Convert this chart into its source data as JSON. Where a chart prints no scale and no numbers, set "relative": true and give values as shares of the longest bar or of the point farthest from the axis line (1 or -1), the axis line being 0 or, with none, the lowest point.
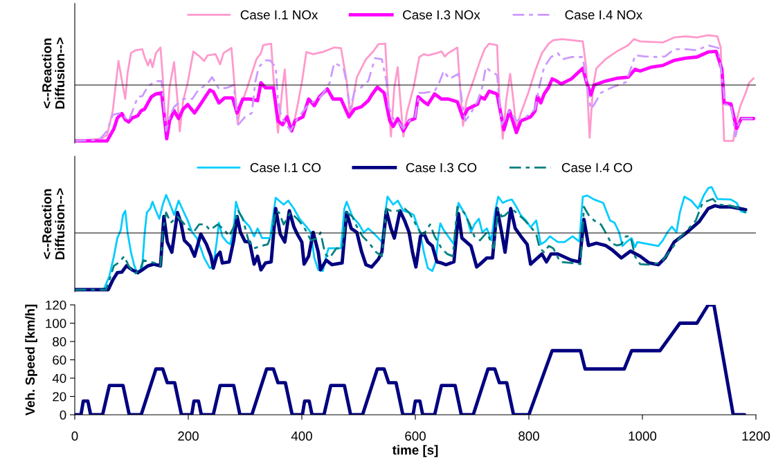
{
  "chart_data": [
    {
      "type": "line",
      "relative": true,
      "ylabel": "<--Reaction\nDiffusion-->",
      "xlim": [
        0,
        1200
      ],
      "legend": "top",
      "series": [
        {
          "name": "Case I.1 NOx",
          "color": "#ff99cc",
          "line_style": "solid",
          "x": [
            0,
            47,
            57,
            67,
            77,
            82,
            89,
            93,
            99,
            107,
            119,
            123,
            129,
            133,
            137,
            143,
            151,
            155,
            161,
            167,
            175,
            181,
            185,
            191,
            199,
            209,
            221,
            228,
            234,
            248,
            256,
            262,
            276,
            280,
            287,
            292,
            304,
            312,
            320,
            328,
            332,
            346,
            350,
            358,
            366,
            370,
            376,
            384,
            392,
            400,
            408,
            420,
            437,
            457,
            469,
            479,
            485,
            491,
            497,
            513,
            525,
            535,
            547,
            553,
            557,
            563,
            569,
            573,
            579,
            585,
            597,
            607,
            615,
            622,
            638,
            646,
            652,
            658,
            674,
            680,
            684,
            690,
            702,
            714,
            722,
            730,
            744,
            748,
            754,
            760,
            767,
            772,
            778,
            786,
            799,
            811,
            823,
            835,
            843,
            859,
            895,
            901,
            907,
            913,
            919,
            935,
            955,
            975,
            985,
            996,
            1036,
            1056,
            1076,
            1096,
            1116,
            1132,
            1138,
            1144,
            1160,
            1164,
            1172,
            1182,
            1188,
            1196
          ],
          "values": [
            -1,
            -0.96,
            -0.89,
            -0.46,
            0.43,
            0.14,
            -0.25,
            0.21,
            0.57,
            0.62,
            0.64,
            0.5,
            0.35,
            0.46,
            0.32,
            0.57,
            0.67,
            0.14,
            -0.92,
            -0.04,
            0.41,
            -0.28,
            -0.83,
            -0.28,
            0.04,
            0.6,
            0.5,
            0.43,
            0.53,
            0.55,
            0.37,
            0.57,
            0.66,
            0.18,
            -0.69,
            -0.39,
            -0.04,
            0.21,
            0.46,
            0.57,
            0.71,
            0.74,
            0.14,
            -0.85,
            -0.04,
            0.28,
            -0.64,
            -0.78,
            -0.39,
            0.04,
            0.59,
            0.55,
            0.59,
            0.67,
            0.66,
            0.07,
            -0.57,
            -0.21,
            0.14,
            0.46,
            0.59,
            0.73,
            0.74,
            -0.39,
            -0.92,
            -0.04,
            0.32,
            -0.21,
            -0.92,
            -0.5,
            -0.04,
            0.5,
            0.55,
            0.53,
            0.57,
            0.6,
            0.51,
            0.57,
            0.67,
            -0.21,
            -0.73,
            -0.28,
            0.07,
            0.43,
            0.64,
            0.74,
            0.71,
            -0.21,
            -0.96,
            -0.28,
            0.2,
            -0.21,
            -0.78,
            -0.5,
            -0.14,
            0.25,
            0.57,
            0.74,
            0.8,
            0.82,
            0.78,
            0.32,
            -0.94,
            -0.04,
            0.3,
            0.46,
            0.6,
            0.71,
            0.82,
            0.78,
            0.76,
            0.85,
            0.87,
            0.85,
            0.89,
            0.87,
            0.67,
            -1,
            -1,
            -0.71,
            -0.39,
            -0.14,
            0.04,
            0.12
          ]
        },
        {
          "name": "Case I.3 NOx",
          "color": "#ff00ff",
          "line_style": "solid",
          "x": [
            0,
            57,
            69,
            75,
            83,
            89,
            95,
            101,
            111,
            117,
            123,
            129,
            135,
            143,
            153,
            157,
            162,
            167,
            175,
            183,
            191,
            199,
            211,
            221,
            232,
            238,
            244,
            254,
            264,
            278,
            286,
            296,
            308,
            322,
            328,
            336,
            350,
            358,
            366,
            374,
            382,
            388,
            402,
            412,
            422,
            431,
            445,
            455,
            469,
            483,
            493,
            505,
            517,
            523,
            533,
            545,
            555,
            561,
            569,
            579,
            589,
            599,
            605,
            615,
            622,
            634,
            646,
            658,
            674,
            684,
            692,
            710,
            714,
            722,
            730,
            744,
            756,
            766,
            778,
            786,
            803,
            811,
            815,
            821,
            827,
            835,
            841,
            849,
            857,
            875,
            895,
            901,
            909,
            915,
            935,
            955,
            975,
            987,
            996,
            1016,
            1036,
            1056,
            1076,
            1096,
            1116,
            1130,
            1140,
            1144,
            1156,
            1166,
            1174,
            1196
          ],
          "values": [
            -1,
            -1,
            -0.78,
            -0.59,
            -0.51,
            -0.62,
            -0.66,
            -0.59,
            -0.55,
            -0.46,
            -0.43,
            -0.32,
            -0.21,
            -0.16,
            -0.14,
            -0.5,
            -0.96,
            -0.64,
            -0.46,
            -0.6,
            -0.43,
            -0.35,
            -0.5,
            -0.35,
            -0.18,
            -0.09,
            -0.12,
            -0.32,
            -0.23,
            -0.23,
            -0.5,
            -0.25,
            -0.25,
            -0.28,
            0.04,
            -0.05,
            -0.05,
            -0.64,
            -0.71,
            -0.57,
            -0.82,
            -0.64,
            -0.57,
            -0.25,
            -0.37,
            -0.21,
            -0.07,
            -0.25,
            -0.25,
            -0.57,
            -0.43,
            -0.39,
            -0.28,
            -0.18,
            -0.04,
            -0.14,
            -0.64,
            -0.74,
            -0.6,
            -0.82,
            -0.64,
            -0.6,
            -0.21,
            -0.3,
            -0.35,
            -0.16,
            -0.25,
            -0.25,
            -0.3,
            -0.59,
            -0.43,
            -0.34,
            -0.21,
            -0.25,
            -0.11,
            -0.16,
            -0.8,
            -0.46,
            -0.85,
            -0.64,
            -0.57,
            -0.46,
            -0.2,
            -0.32,
            -0.16,
            -0.04,
            0.11,
            0.07,
            0.02,
            0.11,
            0.3,
            0.07,
            -0.18,
            0,
            0.07,
            0.12,
            0.14,
            0.28,
            0.25,
            0.32,
            0.35,
            0.44,
            0.48,
            0.5,
            0.59,
            0.6,
            0.28,
            -0.32,
            -0.34,
            -0.78,
            -0.6,
            -0.6
          ]
        },
        {
          "name": "Case I.4 NOx",
          "color": "#cc99ff",
          "line_style": "dashed",
          "x": [
            0,
            43,
            57,
            67,
            81,
            95,
            103,
            111,
            119,
            129,
            143,
            153,
            157,
            161,
            167,
            175,
            191,
            207,
            219,
            232,
            242,
            254,
            268,
            280,
            288,
            300,
            312,
            318,
            324,
            336,
            344,
            354,
            358,
            364,
            380,
            392,
            412,
            429,
            437,
            449,
            457,
            473,
            479,
            485,
            493,
            505,
            517,
            529,
            541,
            549,
            553,
            561,
            569,
            579,
            589,
            599,
            607,
            615,
            634,
            642,
            650,
            660,
            676,
            682,
            688,
            698,
            710,
            718,
            724,
            732,
            744,
            752,
            766,
            778,
            795,
            811,
            819,
            827,
            839,
            851,
            859,
            875,
            895,
            905,
            909,
            915,
            927,
            947,
            971,
            983,
            987,
            1004,
            1026,
            1040,
            1056,
            1076,
            1096,
            1116,
            1134,
            1140,
            1146,
            1156,
            1164,
            1172,
            1196
          ],
          "values": [
            -1,
            -0.98,
            -0.82,
            -0.53,
            -0.5,
            -0.64,
            -0.43,
            -0.21,
            -0.2,
            -0.02,
            0.07,
            0.07,
            -0.39,
            -0.82,
            -0.57,
            -0.39,
            -0.25,
            -0.25,
            -0.07,
            0,
            0.14,
            -0.07,
            -0.05,
            0,
            -0.71,
            -0.57,
            -0.5,
            0.05,
            0.32,
            0.44,
            0.44,
            0.32,
            -0.28,
            -0.57,
            -0.82,
            -0.6,
            -0.35,
            -0.25,
            -0.16,
            0.04,
            0.39,
            0.32,
            0.04,
            -0.43,
            -0.11,
            -0.04,
            0.07,
            0.48,
            0.46,
            0.07,
            -0.39,
            -0.6,
            -0.64,
            -0.78,
            -0.64,
            -0.6,
            -0.14,
            -0.14,
            -0.11,
            0.04,
            0.25,
            0.11,
            0.2,
            -0.28,
            -0.64,
            -0.5,
            -0.28,
            -0.04,
            0.32,
            0.25,
            0.18,
            -0.71,
            -0.46,
            -0.64,
            -0.57,
            -0.43,
            0,
            0.32,
            0.5,
            0.57,
            0.46,
            0.5,
            0.5,
            -0.21,
            -0.43,
            -0.35,
            -0.14,
            -0.04,
            0.05,
            0.39,
            0.53,
            0.51,
            0.5,
            0.51,
            0.64,
            0.64,
            0.62,
            0.71,
            0.66,
            0.14,
            -0.35,
            -0.35,
            -0.92,
            -0.6,
            -0.6
          ]
        }
      ]
    },
    {
      "type": "line",
      "relative": true,
      "ylabel": "<--Reaction\nDiffusion-->",
      "xlim": [
        0,
        1200
      ],
      "legend": "top",
      "series": [
        {
          "name": "Case I.1 CO",
          "color": "#00ccff",
          "line_style": "solid",
          "x": [
            0,
            51,
            61,
            69,
            75,
            81,
            85,
            89,
            93,
            99,
            105,
            111,
            119,
            123,
            127,
            133,
            137,
            143,
            149,
            155,
            161,
            167,
            175,
            183,
            191,
            199,
            207,
            215,
            222,
            228,
            238,
            244,
            250,
            254,
            260,
            268,
            274,
            280,
            284,
            290,
            298,
            308,
            316,
            322,
            330,
            344,
            354,
            360,
            368,
            376,
            386,
            396,
            408,
            416,
            422,
            429,
            437,
            443,
            447,
            469,
            475,
            479,
            489,
            501,
            509,
            517,
            525,
            535,
            541,
            547,
            551,
            561,
            569,
            579,
            589,
            597,
            609,
            615,
            622,
            630,
            636,
            640,
            644,
            650,
            660,
            668,
            676,
            684,
            690,
            698,
            704,
            712,
            718,
            726,
            734,
            740,
            746,
            754,
            762,
            770,
            778,
            786,
            795,
            803,
            813,
            821,
            829,
            837,
            851,
            863,
            877,
            889,
            895,
            903,
            915,
            931,
            943,
            951,
            959,
            965,
            973,
            981,
            987,
            991,
            1012,
            1028,
            1036,
            1044,
            1052,
            1060,
            1066,
            1074,
            1086,
            1098,
            1108,
            1116,
            1122,
            1132,
            1156,
            1166,
            1174,
            1182
          ],
          "values": [
            -1,
            -1,
            -0.76,
            -0.41,
            -0.09,
            0.05,
            0.32,
            0.39,
            0.01,
            -0.34,
            -0.58,
            -0.72,
            -0.58,
            -0.02,
            0.36,
            0.43,
            0.55,
            0.39,
            0.25,
            0.5,
            0.67,
            0.53,
            0.32,
            0.57,
            0.39,
            0.22,
            0.01,
            -0.09,
            -0.27,
            -0.44,
            -0.62,
            -0.58,
            -0.16,
            0.18,
            -0.06,
            -0.16,
            -0.2,
            0.08,
            0.55,
            0.36,
            0.22,
            0.11,
            -0.06,
            0.08,
            -0.09,
            -0.09,
            0.62,
            0.57,
            0.5,
            0.57,
            0.43,
            0.25,
            0.11,
            0.01,
            -0.44,
            -0.65,
            -0.67,
            -0.41,
            -0.27,
            -0.27,
            0.43,
            0.55,
            0.29,
            0.15,
            0.01,
            0.08,
            0.01,
            -0.09,
            -0.16,
            0.36,
            0.64,
            0.5,
            0.57,
            0.39,
            0.36,
            0.32,
            -0.02,
            -0.34,
            -0.62,
            -0.67,
            -0.51,
            -0.09,
            0.17,
            0.05,
            -0.09,
            -0.2,
            0.53,
            0.39,
            0.29,
            0.01,
            0.15,
            0.25,
            0.01,
            0.08,
            -0.13,
            0.36,
            0.64,
            0.53,
            0.57,
            0.59,
            0.46,
            0.31,
            0.22,
            0.1,
            0.22,
            -0.2,
            -0.15,
            -0.06,
            -0.16,
            -0.16,
            -0.06,
            -0.15,
            0.64,
            0.66,
            0.59,
            0.53,
            0.22,
            0.18,
            0.01,
            -0.23,
            -0.15,
            -0.09,
            -0.25,
            -0.16,
            -0.2,
            -0.23,
            -0.13,
            0.01,
            0.11,
            0.01,
            0.36,
            0.64,
            0.57,
            0.43,
            0.66,
            0.79,
            0.81,
            0.6,
            0.59,
            0.53,
            0.38,
            0.36
          ]
        },
        {
          "name": "Case I.3 CO",
          "color": "#000080",
          "line_style": "solid",
          "x": [
            0,
            59,
            67,
            75,
            83,
            91,
            101,
            111,
            119,
            129,
            139,
            151,
            157,
            163,
            171,
            181,
            187,
            193,
            203,
            211,
            222,
            232,
            240,
            244,
            250,
            256,
            260,
            272,
            280,
            286,
            292,
            300,
            308,
            316,
            322,
            328,
            336,
            346,
            354,
            362,
            370,
            378,
            386,
            392,
            400,
            404,
            412,
            420,
            429,
            433,
            443,
            453,
            471,
            479,
            487,
            497,
            505,
            513,
            523,
            535,
            541,
            549,
            557,
            563,
            573,
            581,
            589,
            595,
            601,
            609,
            615,
            622,
            630,
            638,
            646,
            654,
            668,
            676,
            682,
            698,
            708,
            714,
            726,
            736,
            744,
            752,
            758,
            768,
            776,
            786,
            797,
            803,
            813,
            823,
            831,
            839,
            851,
            875,
            889,
            897,
            905,
            919,
            935,
            947,
            963,
            979,
            996,
            1012,
            1028,
            1040,
            1056,
            1076,
            1100,
            1116,
            1128,
            1136,
            1156,
            1182
          ],
          "values": [
            -1,
            -1,
            -0.83,
            -0.7,
            -0.69,
            -0.58,
            -0.65,
            -0.7,
            -0.65,
            -0.58,
            -0.55,
            -0.58,
            0.29,
            -0.16,
            -0.34,
            0.36,
            0.18,
            -0.13,
            -0.23,
            -0.41,
            -0.02,
            -0.2,
            -0.41,
            -0.62,
            -0.41,
            -0.34,
            -0.53,
            -0.51,
            -0.13,
            0.29,
            0.01,
            -0.15,
            -0.16,
            -0.55,
            -0.41,
            -0.65,
            -0.53,
            -0.51,
            0.43,
            -0.02,
            -0.16,
            0.39,
            0.11,
            -0.02,
            -0.16,
            -0.55,
            -0.41,
            0.01,
            -0.34,
            -0.65,
            -0.48,
            -0.56,
            -0.53,
            0.36,
            0.08,
            0.01,
            -0.32,
            -0.56,
            -0.6,
            -0.46,
            -0.34,
            0.39,
            0.08,
            -0.09,
            0.39,
            0.22,
            0.01,
            -0.34,
            -0.6,
            -0.06,
            -0.01,
            -0.16,
            -0.23,
            -0.51,
            -0.53,
            -0.56,
            -0.51,
            0.34,
            -0.09,
            -0.23,
            -0.6,
            -0.55,
            -0.44,
            -0.44,
            0.43,
            0.01,
            -0.34,
            0.43,
            0.08,
            -0.06,
            -0.2,
            -0.55,
            -0.46,
            -0.37,
            -0.51,
            -0.37,
            -0.37,
            -0.48,
            -0.51,
            0.24,
            -0.22,
            -0.18,
            -0.22,
            -0.3,
            -0.44,
            -0.32,
            -0.41,
            -0.53,
            -0.56,
            -0.44,
            -0.16,
            -0.01,
            0.2,
            0.43,
            0.48,
            0.46,
            0.46,
            0.41
          ]
        },
        {
          "name": "Case I.4 CO",
          "color": "#008080",
          "line_style": "dashed",
          "x": [
            0,
            55,
            61,
            69,
            79,
            87,
            95,
            105,
            115,
            121,
            131,
            143,
            151,
            155,
            161,
            169,
            181,
            191,
            199,
            209,
            219,
            230,
            238,
            252,
            264,
            272,
            280,
            288,
            296,
            306,
            316,
            328,
            340,
            348,
            354,
            360,
            368,
            380,
            392,
            404,
            416,
            429,
            433,
            441,
            449,
            461,
            471,
            479,
            489,
            497,
            507,
            517,
            531,
            541,
            549,
            557,
            569,
            581,
            589,
            597,
            609,
            615,
            626,
            634,
            646,
            656,
            666,
            674,
            686,
            696,
            704,
            714,
            726,
            738,
            746,
            752,
            758,
            766,
            774,
            790,
            803,
            813,
            819,
            827,
            835,
            843,
            855,
            875,
            891,
            897,
            905,
            915,
            927,
            935,
            945,
            955,
            963,
            971,
            979,
            987,
            996,
            1012,
            1028,
            1036,
            1052,
            1068,
            1080,
            1094,
            1106,
            1116,
            1124,
            1134,
            1156,
            1172,
            1182
          ],
          "values": [
            -1,
            -1,
            -0.83,
            -0.58,
            -0.51,
            -0.41,
            -0.58,
            -0.72,
            -0.65,
            -0.48,
            -0.51,
            -0.53,
            -0.58,
            0.01,
            0.36,
            0.18,
            0.29,
            0.18,
            0.08,
            0.01,
            0.15,
            0.15,
            0.05,
            0.15,
            0.05,
            -0.06,
            0.11,
            0.39,
            0.25,
            -0.13,
            -0.27,
            -0.23,
            -0.2,
            0.01,
            0.39,
            0.36,
            0.15,
            0.36,
            0.25,
            0.1,
            -0.13,
            -0.09,
            0.01,
            -0.37,
            -0.44,
            -0.27,
            -0.27,
            0.36,
            0.29,
            0.11,
            -0.06,
            -0.16,
            -0.34,
            -0.41,
            0.43,
            0.39,
            0.39,
            0.43,
            0.36,
            0.22,
            0.01,
            -0.02,
            0.15,
            -0.06,
            -0.27,
            -0.37,
            -0.41,
            0.46,
            0.36,
            0.15,
            -0.06,
            -0.13,
            0.01,
            -0.27,
            0.43,
            0.29,
            0.31,
            0.39,
            0.39,
            0.25,
            0.11,
            -0.02,
            -0.27,
            -0.34,
            -0.23,
            -0.27,
            -0.51,
            -0.53,
            -0.55,
            0.46,
            0.32,
            0.22,
            0.15,
            0.01,
            -0.18,
            -0.22,
            -0.2,
            -0.06,
            -0.06,
            -0.41,
            -0.55,
            -0.56,
            -0.53,
            -0.48,
            -0.27,
            -0.06,
            0.06,
            0.22,
            0.53,
            0.57,
            0.6,
            0.5,
            0.48,
            0.43,
            0.36
          ]
        }
      ]
    },
    {
      "type": "line",
      "xlabel": "time [s]",
      "ylabel": "Veh. Speed [km/h]",
      "xlim": [
        0,
        1200
      ],
      "xticks": [
        0,
        200,
        400,
        600,
        800,
        1000,
        1200
      ],
      "ylim": [
        0,
        120
      ],
      "yticks": [
        0,
        20,
        40,
        60,
        80,
        100,
        120
      ],
      "series": [
        {
          "color": "#000080",
          "line_style": "solid",
          "x": [
            0,
            11,
            15,
            23,
            28,
            49,
            61,
            85,
            96,
            117,
            143,
            155,
            163,
            176,
            188,
            195,
            206,
            210,
            218,
            223,
            244,
            256,
            280,
            291,
            312,
            338,
            350,
            358,
            371,
            383,
            390,
            401,
            405,
            413,
            418,
            439,
            451,
            475,
            486,
            507,
            533,
            545,
            553,
            566,
            578,
            585,
            596,
            600,
            608,
            613,
            634,
            646,
            670,
            681,
            702,
            728,
            740,
            748,
            761,
            773,
            780,
            800,
            841,
            891,
            899,
            968,
            981,
            1031,
            1066,
            1096,
            1116,
            1126,
            1160,
            1180
          ],
          "values": [
            0,
            0,
            15,
            15,
            0,
            0,
            32,
            32,
            0,
            0,
            50,
            50,
            35,
            35,
            0,
            0,
            0,
            15,
            15,
            0,
            0,
            32,
            32,
            0,
            0,
            50,
            50,
            35,
            35,
            0,
            0,
            0,
            15,
            15,
            0,
            0,
            32,
            32,
            0,
            0,
            50,
            50,
            35,
            35,
            0,
            0,
            0,
            15,
            15,
            0,
            0,
            32,
            32,
            0,
            0,
            50,
            50,
            35,
            35,
            0,
            0,
            0,
            70,
            70,
            50,
            50,
            70,
            70,
            100,
            100,
            120,
            120,
            0,
            0
          ]
        }
      ]
    }
  ]
}
